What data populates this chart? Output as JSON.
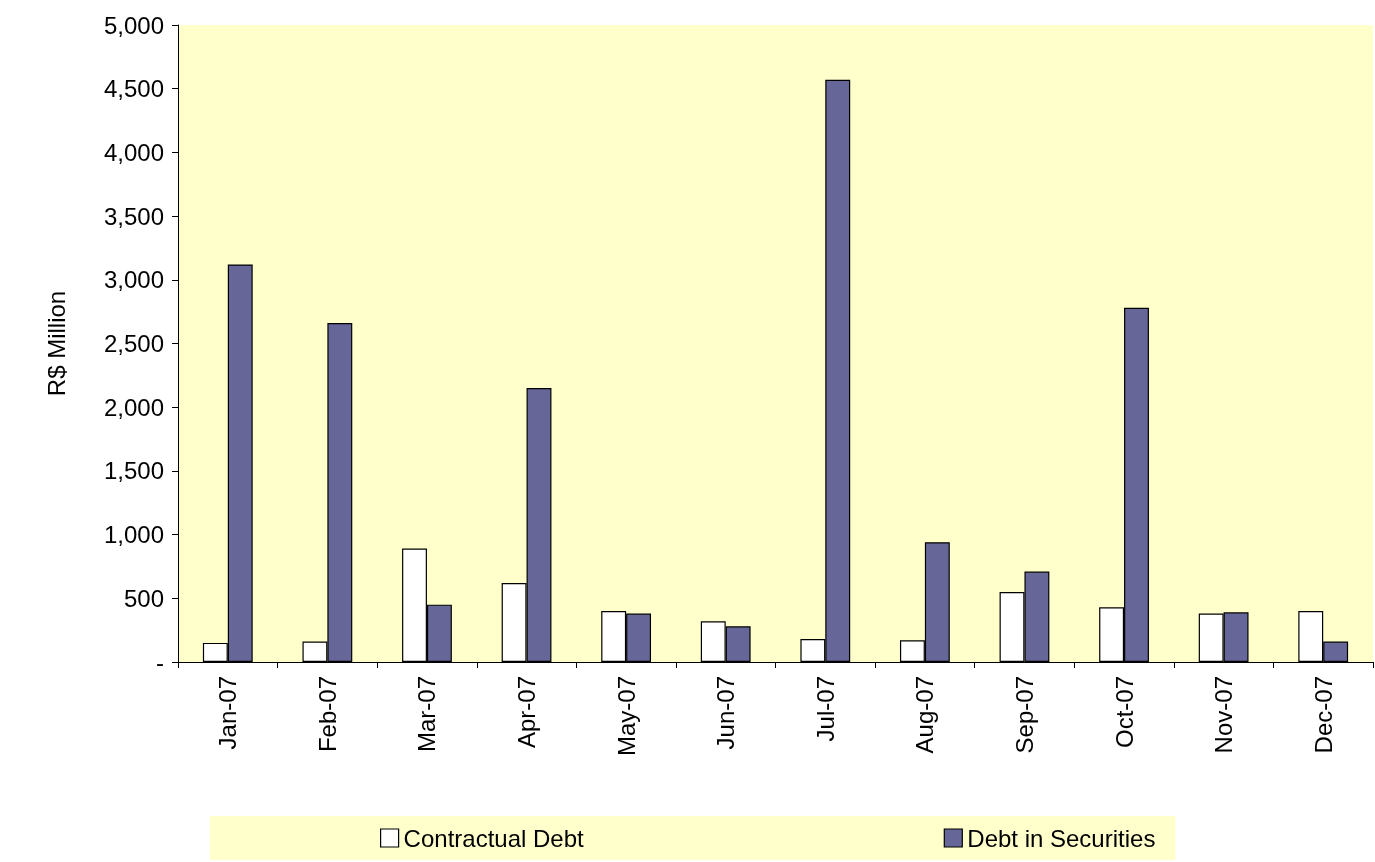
{
  "chart_data": {
    "type": "bar",
    "ylabel": "R$ Million",
    "categories": [
      "Jan-07",
      "Feb-07",
      "Mar-07",
      "Apr-07",
      "May-07",
      "Jun-07",
      "Jul-07",
      "Aug-07",
      "Sep-07",
      "Oct-07",
      "Nov-07",
      "Dec-07"
    ],
    "series": [
      {
        "name": "Contractual Debt",
        "color": "#ffffff",
        "values": [
          150,
          160,
          890,
          620,
          400,
          320,
          180,
          170,
          550,
          430,
          380,
          400
        ]
      },
      {
        "name": "Debt in Securities",
        "color": "#666699",
        "values": [
          3120,
          2660,
          450,
          2150,
          380,
          280,
          4570,
          940,
          710,
          2780,
          390,
          160
        ]
      }
    ],
    "ylim": [
      0,
      5000
    ],
    "yticks": [
      {
        "value": 0,
        "label": "-"
      },
      500,
      {
        "value": 1000,
        "label": "1,000"
      },
      {
        "value": 1500,
        "label": "1,500"
      },
      {
        "value": 2000,
        "label": "2,000"
      },
      {
        "value": 2500,
        "label": "2,500"
      },
      {
        "value": 3000,
        "label": "3,000"
      },
      {
        "value": 3500,
        "label": "3,500"
      },
      {
        "value": 4000,
        "label": "4,000"
      },
      {
        "value": 4500,
        "label": "4,500"
      },
      {
        "value": 5000,
        "label": "5,000"
      }
    ],
    "grid": false,
    "legend": "bottom"
  }
}
